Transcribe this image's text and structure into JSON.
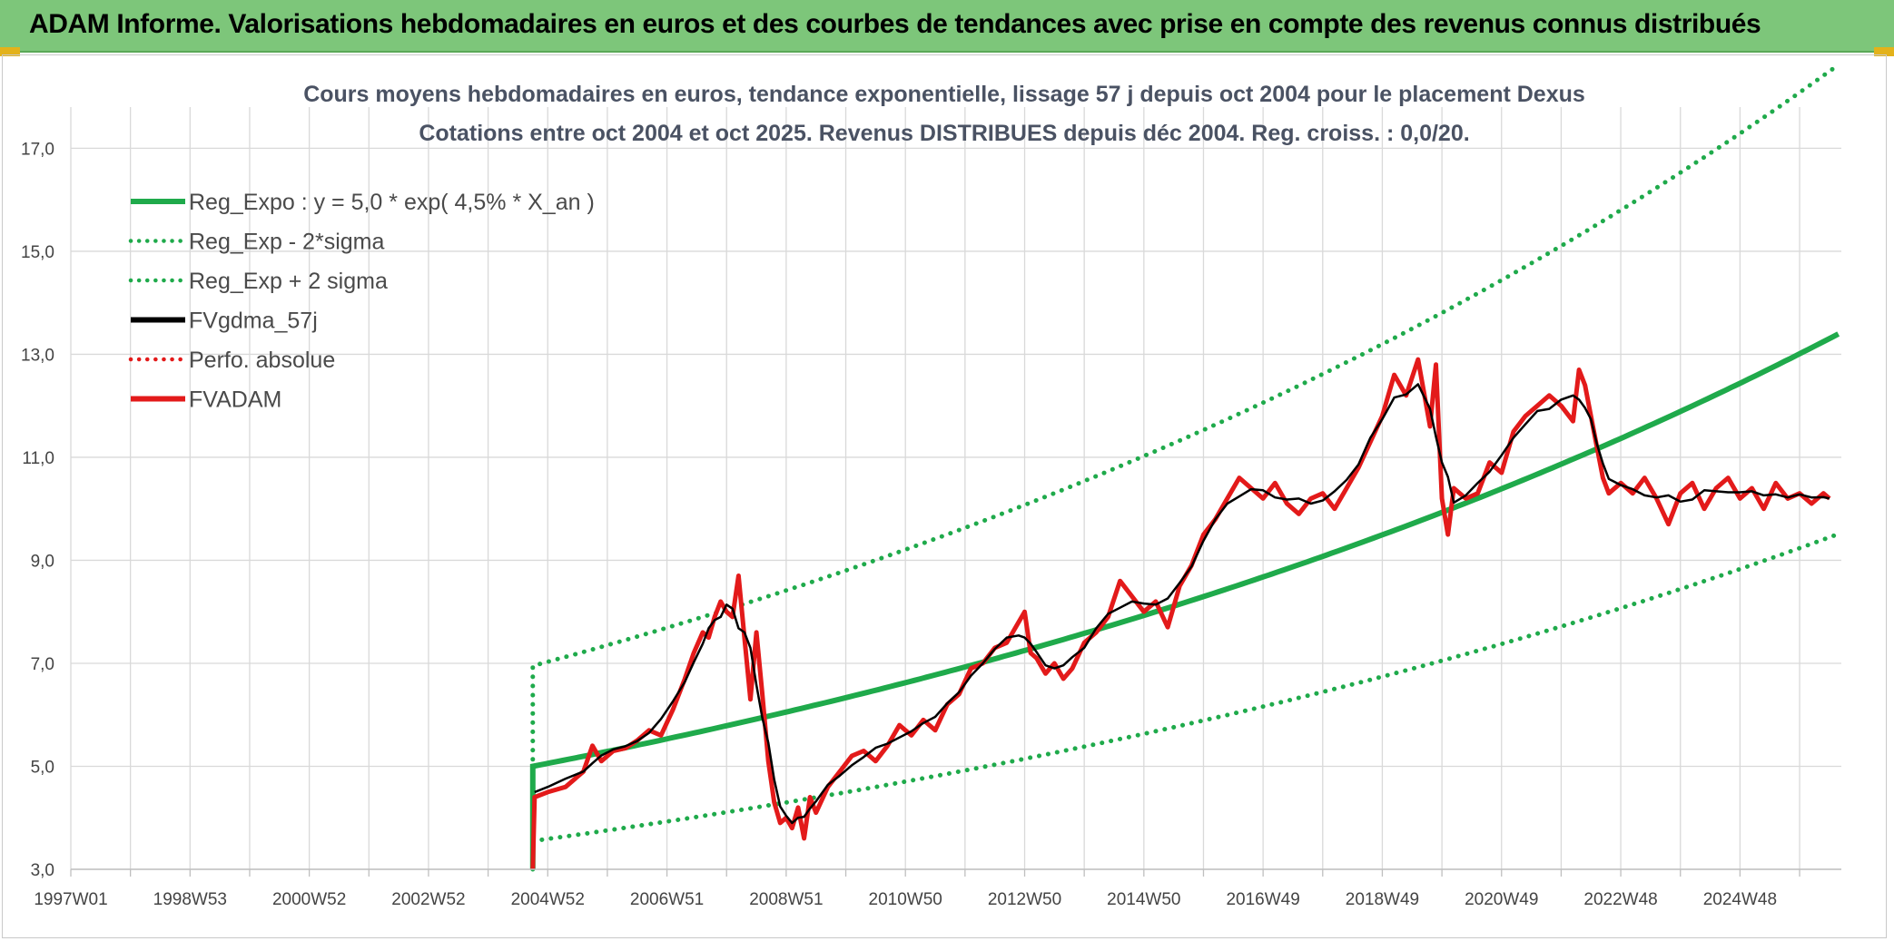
{
  "banner": {
    "title": "ADAM Informe. Valorisations hebdomadaires en euros et des courbes de tendances avec prise en compte des revenus connus distribués",
    "color": "#7dc67a"
  },
  "chart_data": {
    "type": "line",
    "title": "Cours moyens hebdomadaires en euros, tendance exponentielle, lissage 57 j depuis oct 2004 pour le placement Dexus",
    "subtitle": "Cotations entre oct 2004 et oct 2025. Revenus DISTRIBUES depuis déc 2004. Reg. croiss. : 0,0/20.",
    "xlabel": "",
    "ylabel": "",
    "x_range": [
      1997.0,
      2026.7
    ],
    "ylim": [
      3.0,
      17.8
    ],
    "yticks": [
      "3,0",
      "5,0",
      "7,0",
      "9,0",
      "11,0",
      "13,0",
      "15,0",
      "17,0"
    ],
    "ytick_values": [
      3,
      5,
      7,
      9,
      11,
      13,
      15,
      17
    ],
    "xticks": [
      "1997W01",
      "1998W53",
      "2000W52",
      "2002W52",
      "2004W52",
      "2006W51",
      "2008W51",
      "2010W50",
      "2012W50",
      "2014W50",
      "2016W49",
      "2018W49",
      "2020W49",
      "2022W48",
      "2024W48"
    ],
    "xtick_values": [
      1997.0,
      1999.0,
      2001.0,
      2003.0,
      2005.0,
      2007.0,
      2009.0,
      2011.0,
      2013.0,
      2015.0,
      2017.0,
      2019.0,
      2021.0,
      2023.0,
      2025.0
    ],
    "grid": true,
    "legend_position": "top-left",
    "legend": [
      {
        "label": "Reg_Expo : y = 5,0 * exp( 4,5% *  X_an )",
        "color": "#1faa4b",
        "style": "solid"
      },
      {
        "label": "Reg_Exp - 2*sigma",
        "color": "#1faa4b",
        "style": "dotted"
      },
      {
        "label": "Reg_Exp + 2 sigma",
        "color": "#1faa4b",
        "style": "dotted"
      },
      {
        "label": "FVgdma_57j",
        "color": "#000000",
        "style": "solid"
      },
      {
        "label": "Perfo. absolue",
        "color": "#e31a1a",
        "style": "dotted"
      },
      {
        "label": "FVADAM",
        "color": "#e31a1a",
        "style": "solid"
      }
    ],
    "regression": {
      "a": 5.0,
      "rate": 0.045,
      "x_start": 2004.75,
      "x_end": 2026.7,
      "sigma_factor_low": 0.71,
      "sigma_factor_high": 1.39
    },
    "fvadam": {
      "x": [
        2004.75,
        2004.78,
        2005.0,
        2005.3,
        2005.6,
        2005.75,
        2005.9,
        2006.1,
        2006.3,
        2006.5,
        2006.7,
        2006.9,
        2007.1,
        2007.3,
        2007.45,
        2007.6,
        2007.7,
        2007.8,
        2007.9,
        2008.0,
        2008.1,
        2008.2,
        2008.3,
        2008.4,
        2008.5,
        2008.6,
        2008.7,
        2008.8,
        2008.9,
        2009.0,
        2009.1,
        2009.2,
        2009.3,
        2009.4,
        2009.5,
        2009.7,
        2009.9,
        2010.1,
        2010.3,
        2010.5,
        2010.7,
        2010.9,
        2011.1,
        2011.3,
        2011.5,
        2011.7,
        2011.9,
        2012.1,
        2012.3,
        2012.5,
        2012.7,
        2012.9,
        2013.0,
        2013.1,
        2013.2,
        2013.35,
        2013.5,
        2013.65,
        2013.8,
        2014.0,
        2014.2,
        2014.4,
        2014.6,
        2014.8,
        2015.0,
        2015.2,
        2015.4,
        2015.6,
        2015.8,
        2016.0,
        2016.2,
        2016.4,
        2016.6,
        2016.8,
        2017.0,
        2017.2,
        2017.4,
        2017.6,
        2017.8,
        2018.0,
        2018.2,
        2018.4,
        2018.6,
        2018.8,
        2019.0,
        2019.2,
        2019.4,
        2019.6,
        2019.8,
        2019.9,
        2020.0,
        2020.1,
        2020.2,
        2020.4,
        2020.6,
        2020.8,
        2021.0,
        2021.2,
        2021.4,
        2021.6,
        2021.8,
        2022.0,
        2022.2,
        2022.3,
        2022.4,
        2022.5,
        2022.6,
        2022.7,
        2022.8,
        2023.0,
        2023.2,
        2023.4,
        2023.6,
        2023.8,
        2024.0,
        2024.2,
        2024.4,
        2024.6,
        2024.8,
        2025.0,
        2025.2,
        2025.4,
        2025.6,
        2025.8,
        2026.0,
        2026.2,
        2026.4,
        2026.5
      ],
      "y": [
        3.0,
        4.4,
        4.5,
        4.6,
        4.9,
        5.4,
        5.1,
        5.3,
        5.35,
        5.5,
        5.7,
        5.6,
        6.1,
        6.7,
        7.2,
        7.6,
        7.5,
        7.9,
        8.2,
        8.0,
        7.9,
        8.7,
        7.5,
        6.3,
        7.6,
        6.4,
        5.1,
        4.3,
        3.9,
        4.0,
        3.8,
        4.2,
        3.6,
        4.4,
        4.1,
        4.6,
        4.9,
        5.2,
        5.3,
        5.1,
        5.4,
        5.8,
        5.6,
        5.9,
        5.7,
        6.2,
        6.4,
        6.9,
        7.0,
        7.3,
        7.4,
        7.8,
        8.0,
        7.2,
        7.1,
        6.8,
        7.0,
        6.7,
        6.9,
        7.4,
        7.6,
        7.9,
        8.6,
        8.3,
        8.0,
        8.2,
        7.7,
        8.5,
        8.9,
        9.5,
        9.8,
        10.2,
        10.6,
        10.4,
        10.2,
        10.5,
        10.1,
        9.9,
        10.2,
        10.3,
        10.0,
        10.4,
        10.8,
        11.3,
        11.8,
        12.6,
        12.2,
        12.9,
        11.6,
        12.8,
        10.2,
        9.5,
        10.4,
        10.2,
        10.3,
        10.9,
        10.7,
        11.5,
        11.8,
        12.0,
        12.2,
        12.0,
        11.7,
        12.7,
        12.4,
        11.8,
        11.2,
        10.6,
        10.3,
        10.5,
        10.3,
        10.6,
        10.2,
        9.7,
        10.3,
        10.5,
        10.0,
        10.4,
        10.6,
        10.2,
        10.4,
        10.0,
        10.5,
        10.2,
        10.3,
        10.1,
        10.3,
        10.2
      ]
    }
  }
}
